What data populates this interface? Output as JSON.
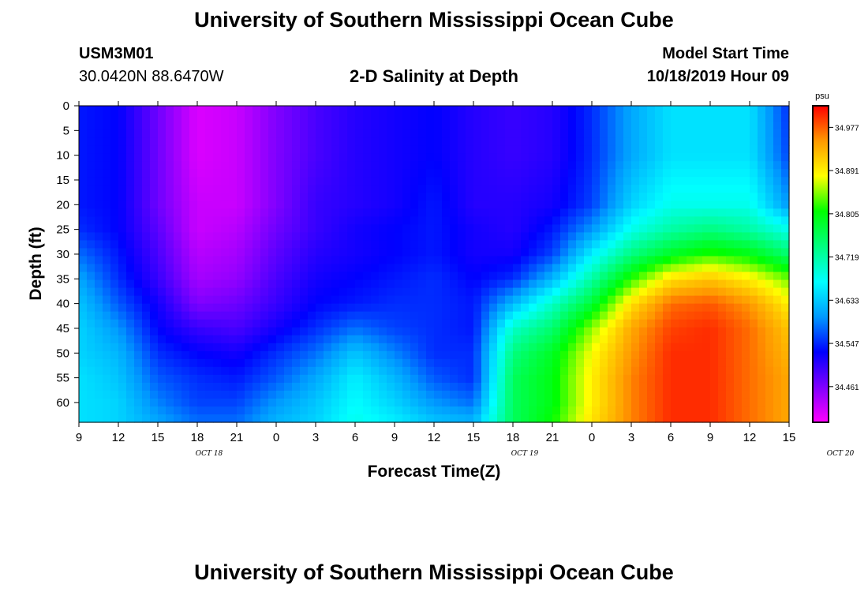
{
  "page_title": "University of Southern Mississippi Ocean Cube",
  "footer_title": "University of Southern Mississippi Ocean Cube",
  "station": {
    "id": "USM3M01",
    "coords": "30.0420N 88.6470W"
  },
  "plot_title": "2-D Salinity at Depth",
  "model": {
    "label": "Model Start Time",
    "value": "10/18/2019 Hour 09"
  },
  "chart_data": {
    "type": "heatmap",
    "title": "2-D Salinity at Depth",
    "xlabel": "Forecast Time(Z)",
    "ylabel": "Depth (ft)",
    "x_ticks": [
      "9",
      "12",
      "15",
      "18",
      "21",
      "0",
      "3",
      "6",
      "9",
      "12",
      "15",
      "18",
      "21",
      "0",
      "3",
      "6",
      "9",
      "12",
      "15"
    ],
    "date_labels": [
      "OCT 18",
      "OCT 19",
      "OCT 20"
    ],
    "y_ticks": [
      "0",
      "5",
      "10",
      "15",
      "20",
      "25",
      "30",
      "35",
      "40",
      "45",
      "50",
      "55",
      "60"
    ],
    "ylim": [
      0,
      64
    ],
    "colorbar": {
      "unit": "psu",
      "ticks": [
        "34.977",
        "34.891",
        "34.805",
        "34.719",
        "34.633",
        "34.547",
        "34.461"
      ],
      "range": [
        34.39,
        35.02
      ],
      "colors": [
        "#ff00ff",
        "#8000ff",
        "#0000ff",
        "#0099ff",
        "#00ffff",
        "#00ff80",
        "#00ff00",
        "#ffff00",
        "#ff9900",
        "#ff0000"
      ]
    },
    "profiles_x": [
      9,
      12,
      15,
      18,
      21,
      24,
      27,
      30,
      33,
      36,
      39,
      42,
      45,
      48,
      51,
      54,
      57,
      60,
      63
    ],
    "profiles_depth": [
      0,
      10,
      20,
      25,
      30,
      35,
      40,
      45,
      50,
      55,
      60,
      64
    ],
    "values": [
      [
        34.54,
        34.54,
        34.54,
        34.55,
        34.58,
        34.61,
        34.63,
        34.64,
        34.64,
        34.65,
        34.65,
        34.65
      ],
      [
        34.53,
        34.53,
        34.53,
        34.53,
        34.54,
        34.55,
        34.57,
        34.6,
        34.62,
        34.63,
        34.64,
        34.64
      ],
      [
        34.47,
        34.47,
        34.47,
        34.48,
        34.49,
        34.5,
        34.52,
        34.53,
        34.55,
        34.57,
        34.59,
        34.61
      ],
      [
        34.41,
        34.41,
        34.42,
        34.42,
        34.43,
        34.44,
        34.46,
        34.5,
        34.53,
        34.55,
        34.56,
        34.58
      ],
      [
        34.42,
        34.42,
        34.42,
        34.43,
        34.44,
        34.45,
        34.47,
        34.49,
        34.52,
        34.54,
        34.56,
        34.58
      ],
      [
        34.46,
        34.46,
        34.46,
        34.47,
        34.48,
        34.49,
        34.5,
        34.52,
        34.55,
        34.57,
        34.6,
        34.62
      ],
      [
        34.49,
        34.49,
        34.5,
        34.5,
        34.51,
        34.52,
        34.53,
        34.55,
        34.58,
        34.61,
        34.63,
        34.64
      ],
      [
        34.51,
        34.51,
        34.51,
        34.52,
        34.52,
        34.53,
        34.54,
        34.58,
        34.63,
        34.66,
        34.67,
        34.68
      ],
      [
        34.52,
        34.52,
        34.52,
        34.53,
        34.53,
        34.54,
        34.55,
        34.56,
        34.59,
        34.62,
        34.64,
        34.66
      ],
      [
        34.53,
        34.53,
        34.54,
        34.54,
        34.54,
        34.55,
        34.55,
        34.55,
        34.55,
        34.57,
        34.6,
        34.63
      ],
      [
        34.51,
        34.51,
        34.51,
        34.52,
        34.52,
        34.53,
        34.54,
        34.54,
        34.55,
        34.55,
        34.58,
        34.62
      ],
      [
        34.5,
        34.5,
        34.51,
        34.51,
        34.52,
        34.55,
        34.62,
        34.7,
        34.74,
        34.76,
        34.76,
        34.76
      ],
      [
        34.51,
        34.51,
        34.52,
        34.54,
        34.56,
        34.62,
        34.7,
        34.75,
        34.79,
        34.8,
        34.8,
        34.81
      ],
      [
        34.55,
        34.55,
        34.56,
        34.6,
        34.66,
        34.72,
        34.78,
        34.85,
        34.88,
        34.89,
        34.89,
        34.9
      ],
      [
        34.61,
        34.61,
        34.64,
        34.68,
        34.74,
        34.82,
        34.9,
        34.94,
        34.95,
        34.96,
        34.96,
        34.96
      ],
      [
        34.65,
        34.65,
        34.68,
        34.72,
        34.79,
        34.9,
        34.97,
        34.99,
        35.0,
        35.0,
        35.0,
        35.0
      ],
      [
        34.65,
        34.65,
        34.68,
        34.74,
        34.82,
        34.92,
        34.98,
        35.0,
        35.0,
        35.0,
        35.0,
        35.0
      ],
      [
        34.65,
        34.65,
        34.68,
        34.72,
        34.8,
        34.89,
        34.95,
        34.97,
        34.97,
        34.97,
        34.97,
        34.97
      ],
      [
        34.55,
        34.56,
        34.6,
        34.68,
        34.75,
        34.84,
        34.89,
        34.92,
        34.93,
        34.94,
        34.94,
        34.94
      ]
    ]
  }
}
